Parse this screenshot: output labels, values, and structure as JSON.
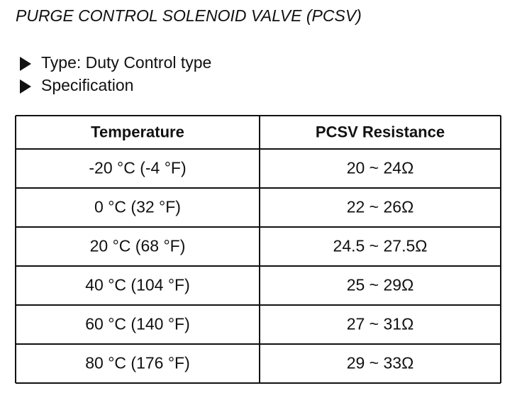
{
  "header": {
    "title": "PURGE CONTROL SOLENOID VALVE (PCSV)"
  },
  "bullets": [
    "Type: Duty Control type",
    "Specification"
  ],
  "table": {
    "columns": [
      "Temperature",
      "PCSV Resistance"
    ],
    "rows": [
      [
        "-20 °C (-4 °F)",
        "20 ~ 24Ω"
      ],
      [
        "0 °C (32 °F)",
        "22 ~ 26Ω"
      ],
      [
        "20 °C (68 °F)",
        "24.5 ~ 27.5Ω"
      ],
      [
        "40 °C (104 °F)",
        "25 ~ 29Ω"
      ],
      [
        "60 °C (140 °F)",
        "27 ~ 31Ω"
      ],
      [
        "80 °C (176 °F)",
        "29 ~ 33Ω"
      ]
    ]
  }
}
